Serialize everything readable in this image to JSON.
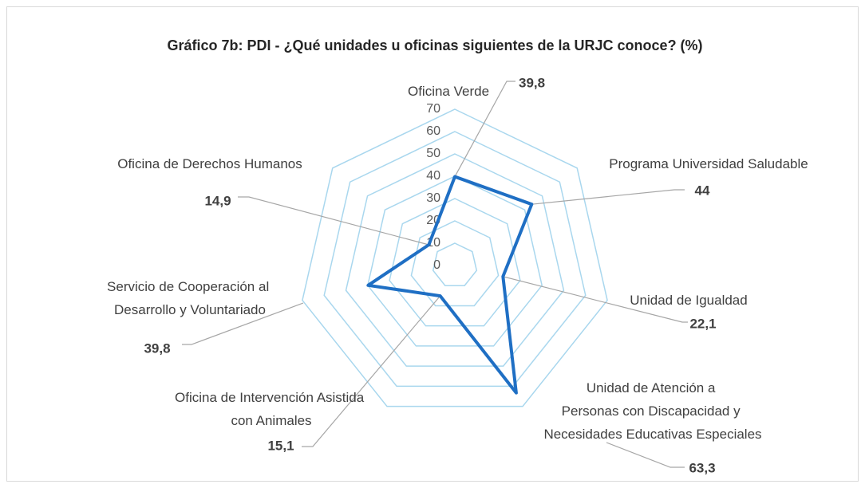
{
  "chart_data": {
    "type": "radar",
    "title": "Gráfico 7b: PDI - ¿Qué unidades u oficinas siguientes de la URJC conoce? (%)",
    "categories": [
      "Oficina Verde",
      "Programa Universidad Saludable",
      "Unidad de Igualdad",
      "Unidad de Atención a Personas con Discapacidad y Necesidades Educativas Especiales",
      "Oficina de Intervención Asistida con Animales",
      "Servicio de Cooperación al Desarrollo y Voluntariado",
      "Oficina de Derechos Humanos"
    ],
    "values": [
      39.8,
      44,
      22.1,
      63.3,
      15.1,
      39.8,
      14.9
    ],
    "value_labels": [
      "39,8",
      "44",
      "22,1",
      "63,3",
      "15,1",
      "39,8",
      "14,9"
    ],
    "color": "#1f6fc4",
    "grid_color": "#a9d7ee",
    "ylim": [
      0,
      70
    ],
    "yticks": [
      0,
      10,
      20,
      30,
      40,
      50,
      60,
      70
    ]
  }
}
